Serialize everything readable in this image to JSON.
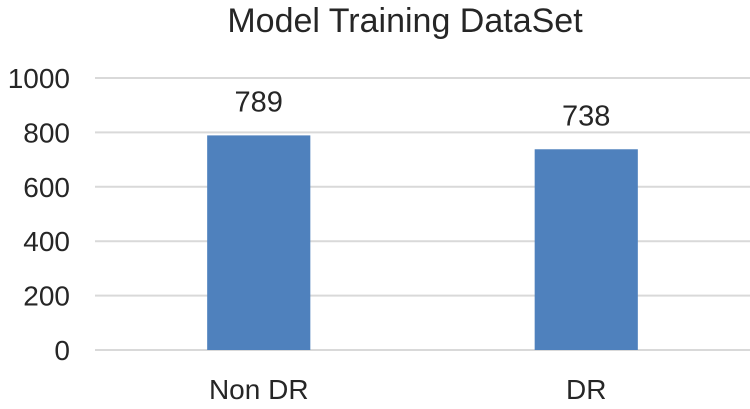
{
  "chart_data": {
    "type": "bar",
    "title": "Model Training DataSet",
    "xlabel": "",
    "ylabel": "",
    "categories": [
      "Non DR",
      "DR"
    ],
    "values": [
      789,
      738
    ],
    "data_labels": [
      "789",
      "738"
    ],
    "ylim": [
      0,
      1000
    ],
    "yticks": [
      0,
      200,
      400,
      600,
      800,
      1000
    ],
    "ytick_labels": [
      "0",
      "200",
      "400",
      "600",
      "800",
      "1000"
    ],
    "grid": true,
    "legend": "none",
    "bar_color": "#4f81bd",
    "grid_color": "#d9d9d9"
  }
}
